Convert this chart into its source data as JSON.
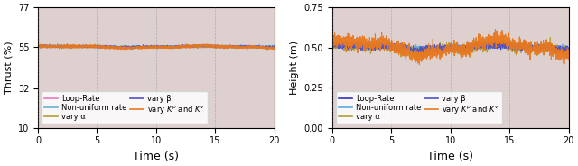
{
  "fig_width": 6.4,
  "fig_height": 1.84,
  "dpi": 100,
  "left_plot": {
    "ylabel": "Thrust (%)",
    "xlabel": "Time (s)",
    "xlim": [
      0,
      20
    ],
    "ylim": [
      10,
      77
    ],
    "yticks": [
      10,
      32,
      55,
      77
    ],
    "xticks": [
      0,
      5,
      10,
      15,
      20
    ],
    "bg_color": "#ddd0ce",
    "lines": {
      "loop_rate": {
        "color": "#e87abf",
        "lw": 0.7,
        "mean": 54.8,
        "amp": 0.15,
        "noise": 0.25
      },
      "non_uniform": {
        "color": "#6ab0d4",
        "lw": 0.7,
        "mean": 55.3,
        "amp": 0.2,
        "noise": 0.3
      },
      "vary_alpha": {
        "color": "#b0a030",
        "lw": 0.7,
        "mean": 54.7,
        "amp": 0.12,
        "noise": 0.18
      },
      "vary_beta": {
        "color": "#5050c8",
        "lw": 0.7,
        "mean": 55.2,
        "amp": 0.25,
        "noise": 0.3
      },
      "vary_kp_kv": {
        "color": "#e87820",
        "lw": 0.8,
        "mean": 55.0,
        "amp": 0.5,
        "noise": 0.4
      }
    }
  },
  "right_plot": {
    "ylabel": "Height (m)",
    "xlabel": "Time (s)",
    "xlim": [
      0,
      20
    ],
    "ylim": [
      0.0,
      0.75
    ],
    "yticks": [
      0.0,
      0.25,
      0.5,
      0.75
    ],
    "xticks": [
      0,
      5,
      10,
      15,
      20
    ],
    "bg_color": "#ddd0ce",
    "lines": {
      "loop_rate": {
        "color": "#3030c0",
        "lw": 0.7,
        "mean": 0.5,
        "amp": 0.005,
        "noise": 0.006
      },
      "non_uniform": {
        "color": "#5aabe0",
        "lw": 0.7,
        "mean": 0.503,
        "amp": 0.008,
        "noise": 0.008
      },
      "vary_alpha": {
        "color": "#b0a030",
        "lw": 0.7,
        "mean": 0.497,
        "amp": 0.02,
        "noise": 0.015
      },
      "vary_beta": {
        "color": "#5050c8",
        "lw": 0.7,
        "mean": 0.501,
        "amp": 0.012,
        "noise": 0.01
      },
      "vary_kp_kv": {
        "color": "#e87820",
        "lw": 0.8,
        "mean": 0.5,
        "amp": 0.04,
        "noise": 0.02
      }
    }
  },
  "legend_left": {
    "row1": [
      "Loop-Rate",
      "#e87abf",
      "Non-uniform rate",
      "#6ab0d4"
    ],
    "row2": [
      "vary α",
      "#b0a030",
      "vary β",
      "#5050c8"
    ],
    "row3": [
      "vary $K^p$ and $K^v$",
      "#e87820"
    ]
  },
  "legend_right": {
    "row1": [
      "Loop-Rate",
      "#3030c0",
      "Non-uniform rate",
      "#5aabe0"
    ],
    "row2": [
      "vary α",
      "#b0a030",
      "vary β",
      "#5050c8"
    ],
    "row3": [
      "vary $K^p$ and $K^v$",
      "#e87820"
    ]
  },
  "legend_fontsize": 6.0
}
